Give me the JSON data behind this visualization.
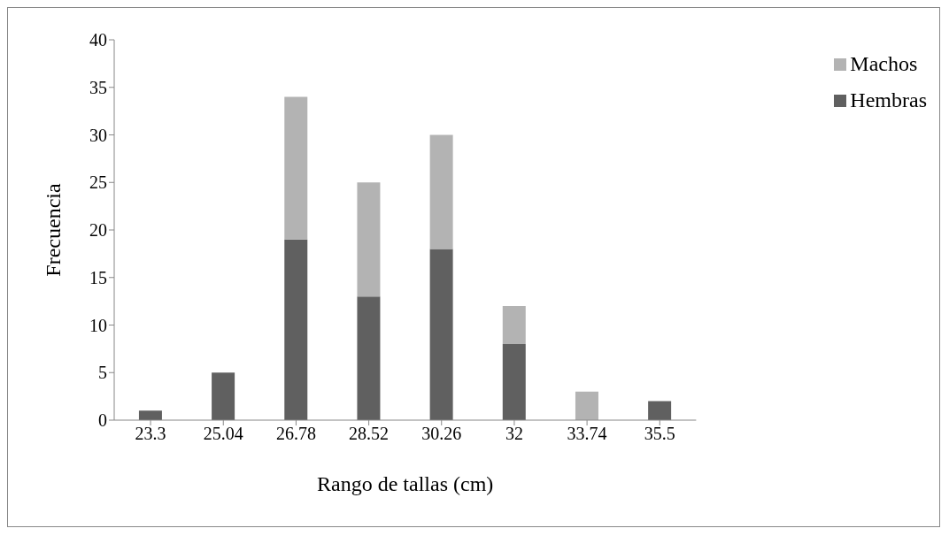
{
  "chart_data": {
    "type": "bar",
    "stacked": true,
    "xlabel": "Rango de tallas (cm)",
    "ylabel": "Frecuencia",
    "categories": [
      "23.3",
      "25.04",
      "26.78",
      "28.52",
      "30.26",
      "32",
      "33.74",
      "35.5"
    ],
    "series": [
      {
        "name": "Hembras",
        "color": "#606060",
        "values": [
          1,
          5,
          19,
          13,
          18,
          8,
          0,
          2
        ]
      },
      {
        "name": "Machos",
        "color": "#b3b3b3",
        "values": [
          0,
          0,
          15,
          12,
          12,
          4,
          3,
          0
        ]
      }
    ],
    "ylim": [
      0,
      40
    ],
    "yticks": [
      0,
      5,
      10,
      15,
      20,
      25,
      30,
      35,
      40
    ],
    "grid": false,
    "legend": "top right"
  }
}
